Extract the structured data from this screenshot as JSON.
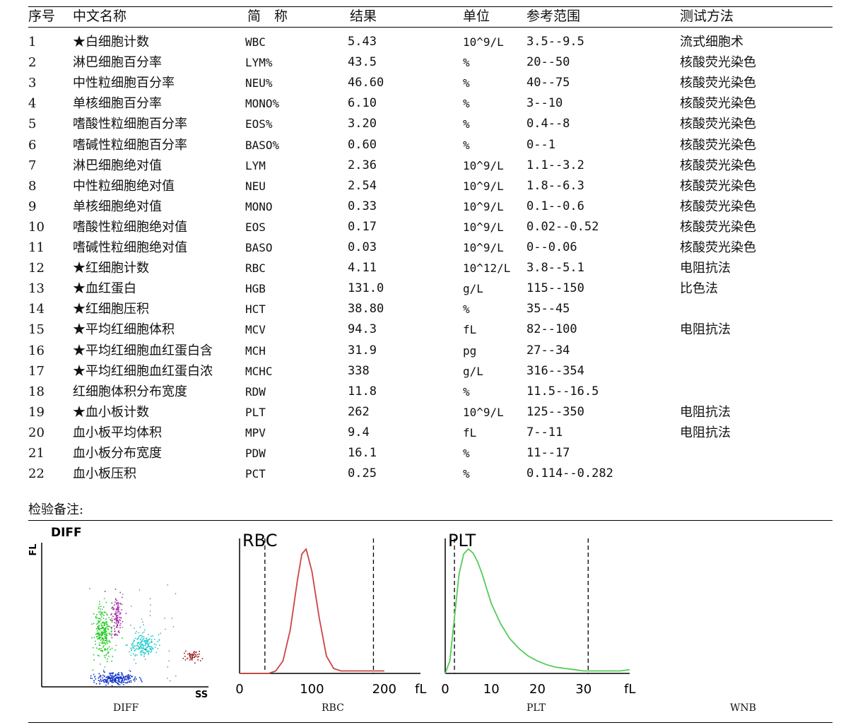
{
  "table": {
    "headers": [
      "序号",
      "中文名称",
      "简　称",
      "结果",
      "单位",
      "参考范围",
      "测试方法"
    ],
    "rows": [
      {
        "no": "1",
        "name": "★白细胞计数",
        "abbr": "WBC",
        "result": "5.43",
        "unit": "10^9/L",
        "ref": "3.5--9.5",
        "method": "流式细胞术"
      },
      {
        "no": "2",
        "name": "淋巴细胞百分率",
        "abbr": "LYM%",
        "result": "43.5",
        "unit": "%",
        "ref": "20--50",
        "method": "核酸荧光染色"
      },
      {
        "no": "3",
        "name": "中性粒细胞百分率",
        "abbr": "NEU%",
        "result": "46.60",
        "unit": "%",
        "ref": "40--75",
        "method": "核酸荧光染色"
      },
      {
        "no": "4",
        "name": "单核细胞百分率",
        "abbr": "MONO%",
        "result": "6.10",
        "unit": "%",
        "ref": "3--10",
        "method": "核酸荧光染色"
      },
      {
        "no": "5",
        "name": "嗜酸性粒细胞百分率",
        "abbr": "EOS%",
        "result": "3.20",
        "unit": "%",
        "ref": "0.4--8",
        "method": "核酸荧光染色"
      },
      {
        "no": "6",
        "name": "嗜碱性粒细胞百分率",
        "abbr": "BASO%",
        "result": "0.60",
        "unit": "%",
        "ref": "0--1",
        "method": "核酸荧光染色"
      },
      {
        "no": "7",
        "name": "淋巴细胞绝对值",
        "abbr": "LYM",
        "result": "2.36",
        "unit": "10^9/L",
        "ref": "1.1--3.2",
        "method": "核酸荧光染色"
      },
      {
        "no": "8",
        "name": "中性粒细胞绝对值",
        "abbr": "NEU",
        "result": "2.54",
        "unit": "10^9/L",
        "ref": "1.8--6.3",
        "method": "核酸荧光染色"
      },
      {
        "no": "9",
        "name": "单核细胞绝对值",
        "abbr": "MONO",
        "result": "0.33",
        "unit": "10^9/L",
        "ref": "0.1--0.6",
        "method": "核酸荧光染色"
      },
      {
        "no": "10",
        "name": "嗜酸性粒细胞绝对值",
        "abbr": "EOS",
        "result": "0.17",
        "unit": "10^9/L",
        "ref": "0.02--0.52",
        "method": "核酸荧光染色"
      },
      {
        "no": "11",
        "name": "嗜碱性粒细胞绝对值",
        "abbr": "BASO",
        "result": "0.03",
        "unit": "10^9/L",
        "ref": "0--0.06",
        "method": "核酸荧光染色"
      },
      {
        "no": "12",
        "name": "★红细胞计数",
        "abbr": "RBC",
        "result": "4.11",
        "unit": "10^12/L",
        "ref": "3.8--5.1",
        "method": "电阻抗法"
      },
      {
        "no": "13",
        "name": "★血红蛋白",
        "abbr": "HGB",
        "result": "131.0",
        "unit": "g/L",
        "ref": "115--150",
        "method": "比色法"
      },
      {
        "no": "14",
        "name": "★红细胞压积",
        "abbr": "HCT",
        "result": "38.80",
        "unit": "%",
        "ref": "35--45",
        "method": ""
      },
      {
        "no": "15",
        "name": "★平均红细胞体积",
        "abbr": "MCV",
        "result": "94.3",
        "unit": "fL",
        "ref": "82--100",
        "method": "电阻抗法"
      },
      {
        "no": "16",
        "name": "★平均红细胞血红蛋白含",
        "abbr": "MCH",
        "result": "31.9",
        "unit": "pg",
        "ref": "27--34",
        "method": ""
      },
      {
        "no": "17",
        "name": "★平均红细胞血红蛋白浓",
        "abbr": "MCHC",
        "result": "338",
        "unit": "g/L",
        "ref": "316--354",
        "method": ""
      },
      {
        "no": "18",
        "name": "红细胞体积分布宽度",
        "abbr": "RDW",
        "result": "11.8",
        "unit": "%",
        "ref": "11.5--16.5",
        "method": ""
      },
      {
        "no": "19",
        "name": "★血小板计数",
        "abbr": "PLT",
        "result": "262",
        "unit": "10^9/L",
        "ref": "125--350",
        "method": "电阻抗法"
      },
      {
        "no": "20",
        "name": "血小板平均体积",
        "abbr": "MPV",
        "result": "9.4",
        "unit": "fL",
        "ref": "7--11",
        "method": "电阻抗法"
      },
      {
        "no": "21",
        "name": "血小板分布宽度",
        "abbr": "PDW",
        "result": "16.1",
        "unit": "%",
        "ref": "11--17",
        "method": ""
      },
      {
        "no": "22",
        "name": "血小板压积",
        "abbr": "PCT",
        "result": "0.25",
        "unit": "%",
        "ref": "0.114--0.282",
        "method": ""
      }
    ]
  },
  "note_label": "检验备注:",
  "chart_data": [
    {
      "type": "scatter",
      "title": "DIFF",
      "xlabel": "SS",
      "ylabel": "FL",
      "caption": "DIFF",
      "clusters": [
        {
          "population": "green",
          "color": "#22cc22"
        },
        {
          "population": "purple",
          "color": "#aa22aa"
        },
        {
          "population": "cyan",
          "color": "#22cccc"
        },
        {
          "population": "blue",
          "color": "#1133cc"
        },
        {
          "population": "dark-red",
          "color": "#991111"
        }
      ]
    },
    {
      "type": "line",
      "title": "RBC",
      "xlabel": "fL",
      "caption": "RBC",
      "xlim": [
        0,
        250
      ],
      "xticks": [
        "0",
        "100",
        "200"
      ],
      "color": "#cc4444",
      "discriminators": [
        35,
        185
      ],
      "x": [
        0,
        30,
        40,
        50,
        60,
        70,
        80,
        86,
        92,
        100,
        110,
        120,
        130,
        140,
        150,
        160,
        170,
        180,
        190,
        200
      ],
      "y": [
        0,
        0,
        0,
        2,
        10,
        35,
        75,
        96,
        100,
        82,
        45,
        14,
        4,
        2,
        2,
        2,
        2,
        2,
        2,
        2
      ]
    },
    {
      "type": "line",
      "title": "PLT",
      "xlabel": "fL",
      "caption": "PLT",
      "xlim": [
        0,
        40
      ],
      "xticks": [
        "0",
        "10",
        "20",
        "30"
      ],
      "color": "#55cc55",
      "discriminators": [
        2,
        31
      ],
      "x": [
        0,
        1,
        2,
        3,
        4,
        5,
        6,
        7,
        8,
        9,
        10,
        12,
        14,
        16,
        18,
        20,
        22,
        24,
        26,
        28,
        30,
        32,
        34,
        36,
        38,
        40
      ],
      "y": [
        0,
        10,
        45,
        80,
        96,
        100,
        97,
        90,
        80,
        68,
        56,
        40,
        28,
        20,
        14,
        10,
        7,
        5,
        4,
        3,
        2,
        2,
        2,
        2,
        2,
        3
      ]
    },
    {
      "type": "line",
      "title": "",
      "caption": "WNB"
    }
  ]
}
